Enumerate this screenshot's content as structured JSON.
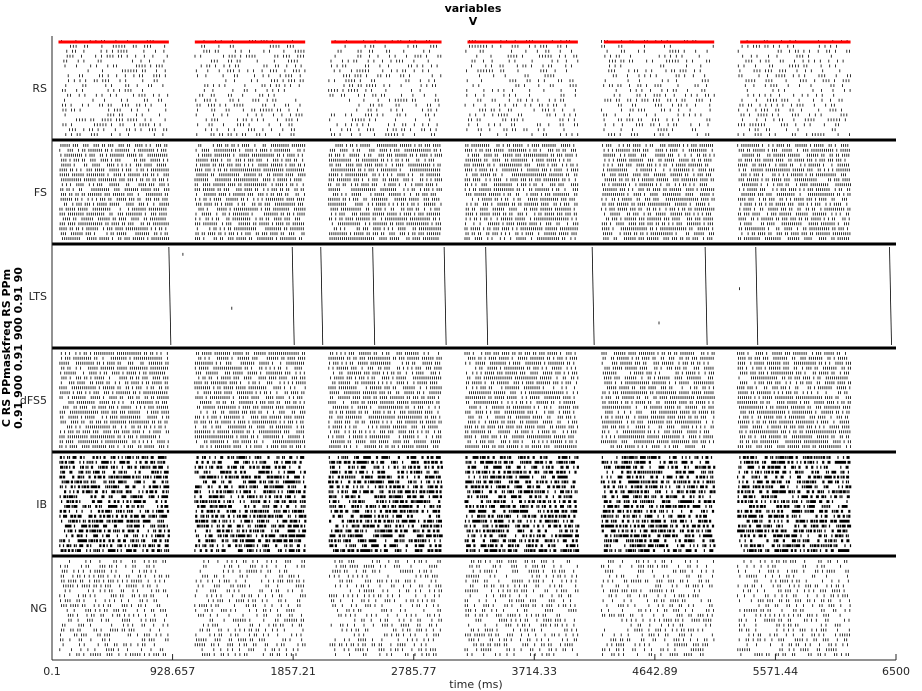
{
  "chart_data": {
    "type": "raster",
    "title": [
      "variables",
      "V"
    ],
    "xlabel": "time (ms)",
    "ylabel": [
      "C RS PPmaskfreq RS PPm",
      "0.91 900 0.91 900 0.91 90"
    ],
    "xlim": [
      0.1,
      6500
    ],
    "xticks": [
      0.1,
      928.657,
      1857.21,
      2785.77,
      3714.33,
      4642.89,
      5571.44,
      6500
    ],
    "xtick_labels": [
      "0.1",
      "928.657",
      "1857.21",
      "2785.77",
      "3714.33",
      "4642.89",
      "5571.44",
      "6500"
    ],
    "populations": [
      "RS",
      "FS",
      "LTS",
      "dFS5",
      "IB",
      "NG"
    ],
    "stimulus_color": "#ff0000",
    "stimulus_periods": [
      [
        50,
        900
      ],
      [
        1100,
        1950
      ],
      [
        2150,
        3000
      ],
      [
        3200,
        4050
      ],
      [
        4250,
        5100
      ],
      [
        5300,
        6150
      ]
    ],
    "burst_windows": [
      [
        60,
        900
      ],
      [
        1100,
        1950
      ],
      [
        2130,
        3000
      ],
      [
        3180,
        4050
      ],
      [
        4230,
        5100
      ],
      [
        5280,
        6150
      ]
    ],
    "lts_volley_times": [
      900,
      1850,
      2070,
      2470,
      3020,
      3340,
      4160,
      5030,
      5420,
      6450
    ],
    "grid": false
  },
  "colors": {
    "axis": "#262626",
    "spikes": "#000000",
    "separator": "#000000"
  }
}
